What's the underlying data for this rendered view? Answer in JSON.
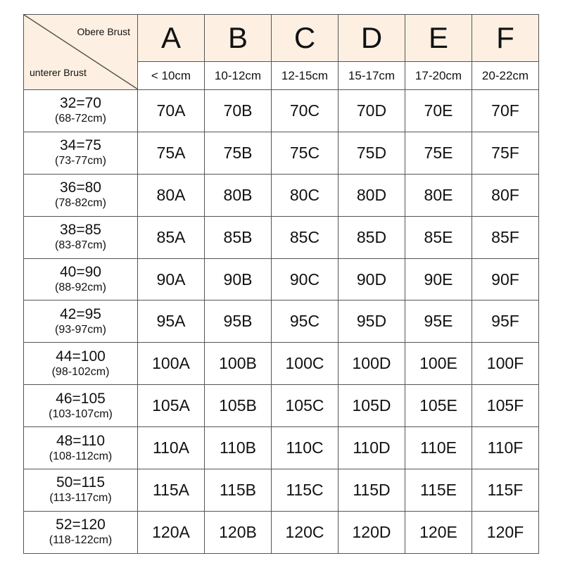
{
  "corner": {
    "top_label": "Obere Brust",
    "bottom_label": "unterer Brust"
  },
  "cups": [
    {
      "letter": "A",
      "range": "< 10cm"
    },
    {
      "letter": "B",
      "range": "10-12cm"
    },
    {
      "letter": "C",
      "range": "12-15cm"
    },
    {
      "letter": "D",
      "range": "15-17cm"
    },
    {
      "letter": "E",
      "range": "17-20cm"
    },
    {
      "letter": "F",
      "range": "20-22cm"
    }
  ],
  "rows": [
    {
      "size": "32=70",
      "cm": "(68-72cm)",
      "band": "70"
    },
    {
      "size": "34=75",
      "cm": "(73-77cm)",
      "band": "75"
    },
    {
      "size": "36=80",
      "cm": "(78-82cm)",
      "band": "80"
    },
    {
      "size": "38=85",
      "cm": "(83-87cm)",
      "band": "85"
    },
    {
      "size": "40=90",
      "cm": "(88-92cm)",
      "band": "90"
    },
    {
      "size": "42=95",
      "cm": "(93-97cm)",
      "band": "95"
    },
    {
      "size": "44=100",
      "cm": "(98-102cm)",
      "band": "100"
    },
    {
      "size": "46=105",
      "cm": "(103-107cm)",
      "band": "105"
    },
    {
      "size": "48=110",
      "cm": "(108-112cm)",
      "band": "110"
    },
    {
      "size": "50=115",
      "cm": "(113-117cm)",
      "band": "115"
    },
    {
      "size": "52=120",
      "cm": "(118-122cm)",
      "band": "120"
    }
  ],
  "colors": {
    "header_bg": "#fdf0e2",
    "border": "#555555"
  }
}
